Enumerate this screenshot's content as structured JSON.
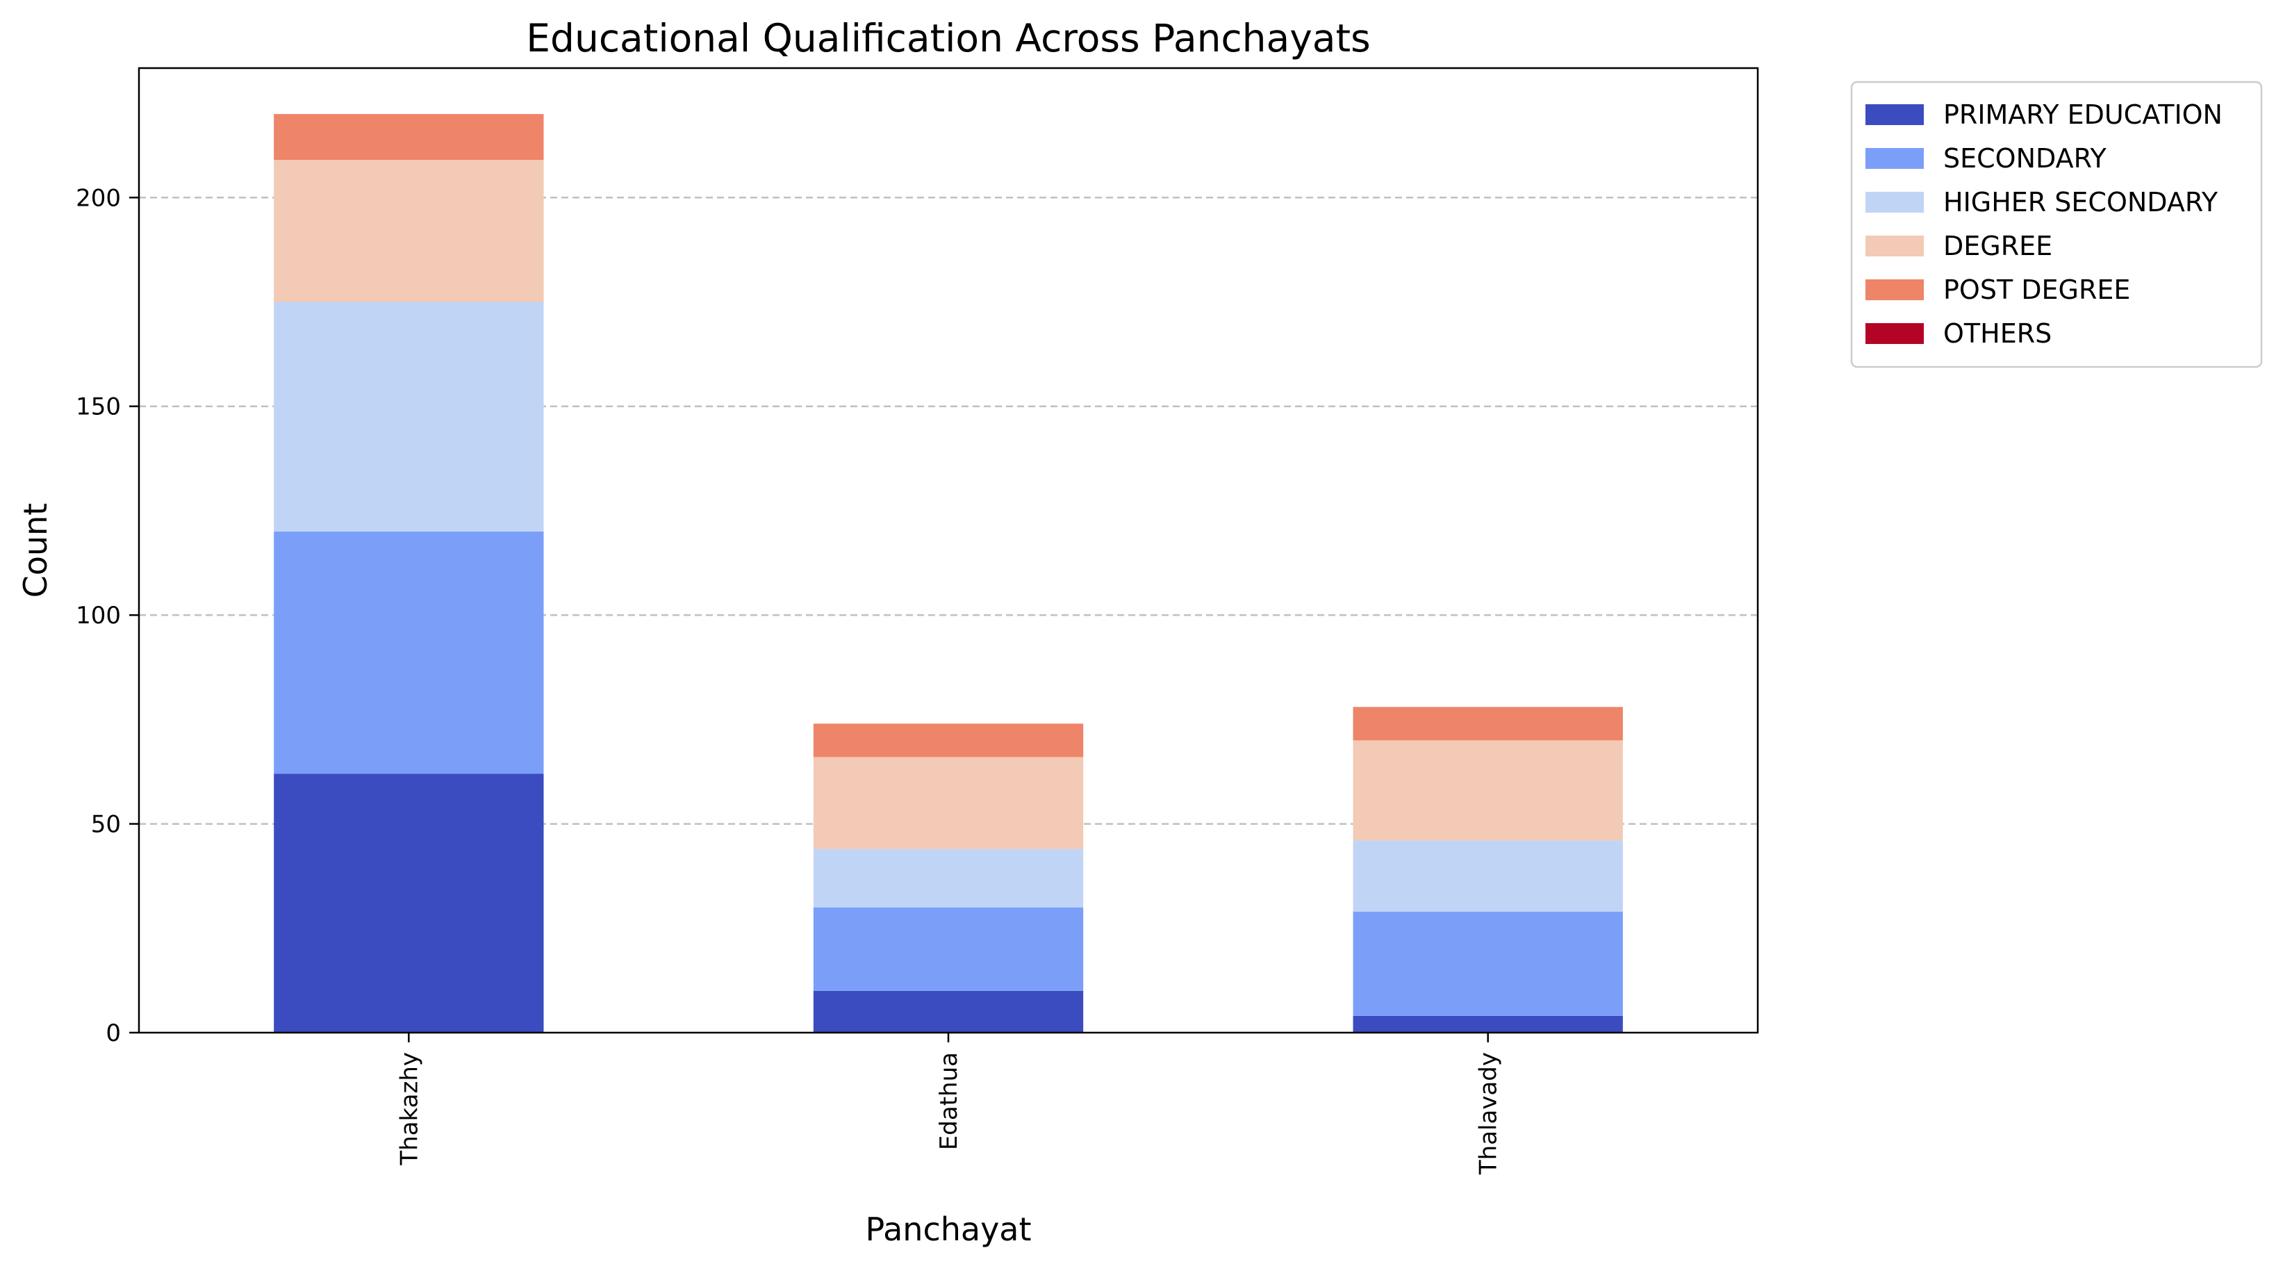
{
  "chart_data": {
    "type": "bar",
    "stacked": true,
    "title": "Educational Qualification Across Panchayats",
    "xlabel": "Panchayat",
    "ylabel": "Count",
    "categories": [
      "Thakazhy",
      "Edathua",
      "Thalavady"
    ],
    "series": [
      {
        "name": "PRIMARY EDUCATION",
        "color": "#3b4cc0",
        "values": [
          62,
          10,
          4
        ]
      },
      {
        "name": "SECONDARY",
        "color": "#7b9ff9",
        "values": [
          58,
          20,
          25
        ]
      },
      {
        "name": "HIGHER SECONDARY",
        "color": "#c0d4f5",
        "values": [
          55,
          14,
          17
        ]
      },
      {
        "name": "DEGREE",
        "color": "#f2cab5",
        "values": [
          34,
          22,
          24
        ]
      },
      {
        "name": "POST DEGREE",
        "color": "#ee8468",
        "values": [
          11,
          8,
          8
        ]
      },
      {
        "name": "OTHERS",
        "color": "#b40426",
        "values": [
          0,
          0,
          0
        ]
      }
    ],
    "ylim": [
      0,
      231
    ],
    "yticks": [
      0,
      50,
      100,
      150,
      200
    ],
    "grid": "y-dashed",
    "legend_position": "outside-top-right"
  }
}
